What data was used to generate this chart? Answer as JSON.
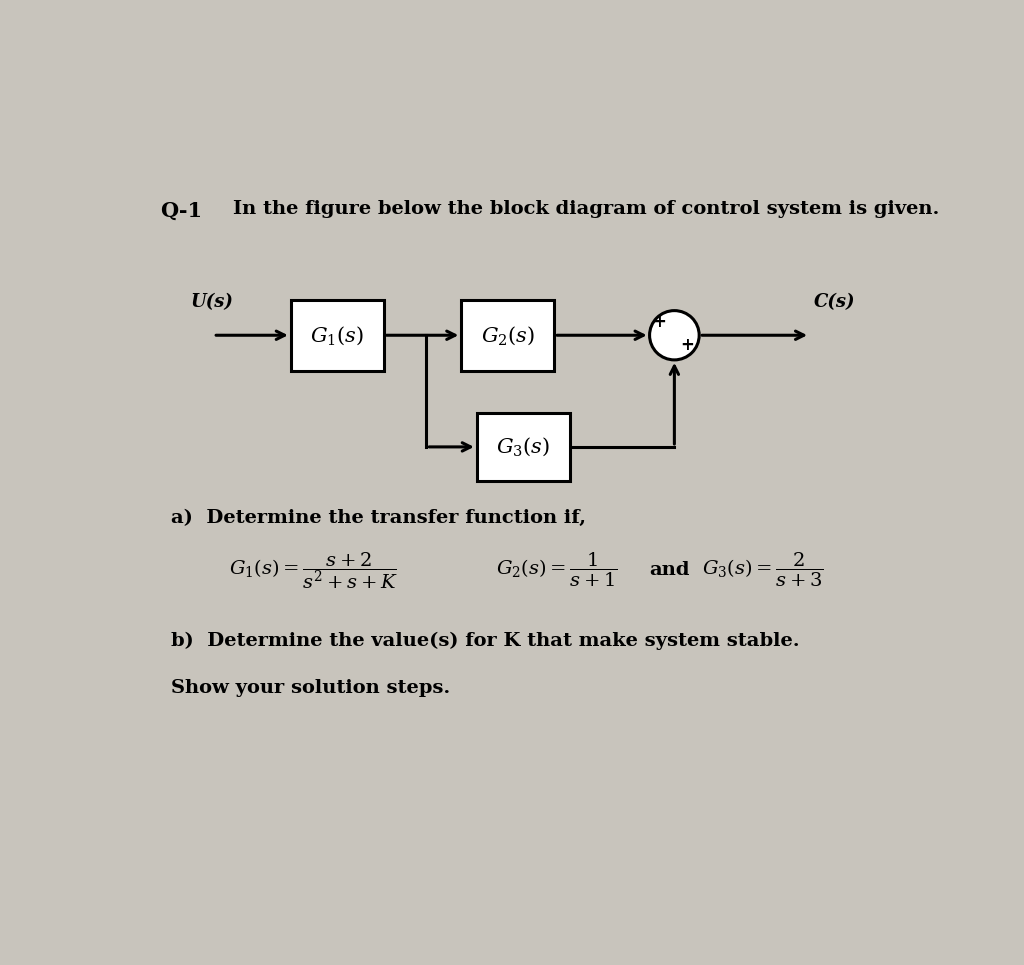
{
  "bg_color": "#c8c4bc",
  "title_q": "Q-1",
  "title_text": "In the figure below the block diagram of control system is given.",
  "part_a_text": "a)  Determine the transfer function if,",
  "part_b_line1": "b)  Determine the value(s) for K that make system stable.",
  "part_b_line2": "     Show your solution steps.",
  "g1_label": "$G_1(s)$",
  "g2_label": "$G_2(s)$",
  "g3_label": "$G_3(s)$",
  "u_label": "U(s)",
  "c_label": "C(s)"
}
